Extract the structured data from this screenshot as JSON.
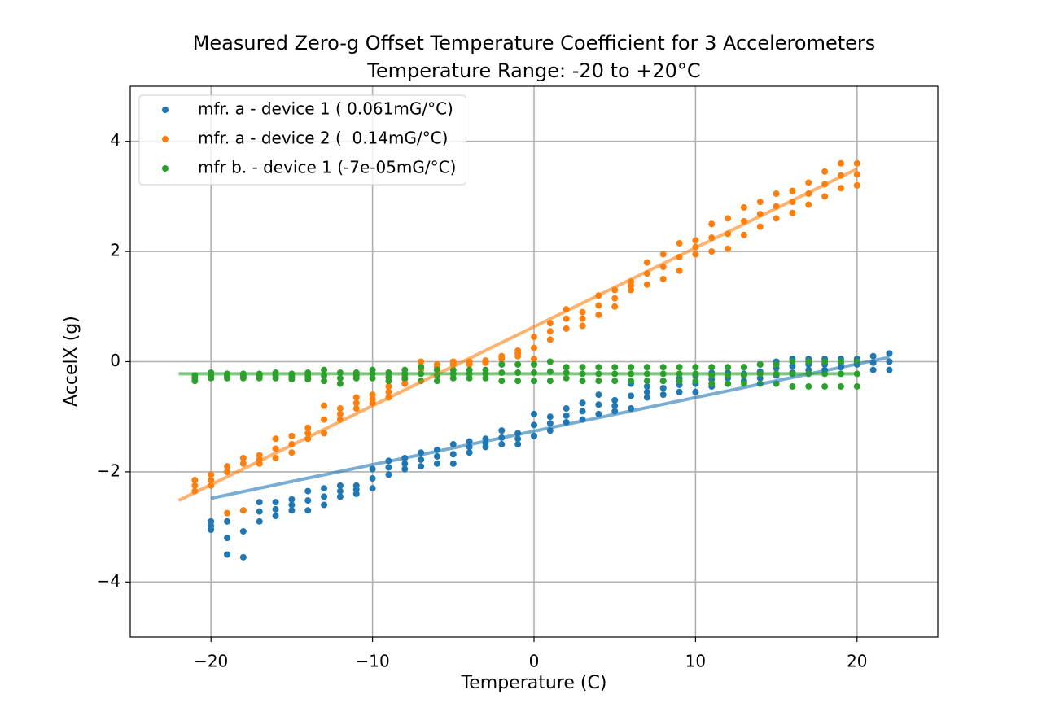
{
  "chart_data": {
    "type": "scatter",
    "title": "Measured Zero-g Offset Temperature Coefficient for 3 Accelerometers",
    "subtitle": "Temperature Range: -20 to +20°C",
    "x_label": "Temperature (C)",
    "y_label": "AccelX (g)",
    "xlim": [
      -25,
      25
    ],
    "ylim": [
      -5,
      5
    ],
    "xticks": [
      {
        "value": -20,
        "label": "−20"
      },
      {
        "value": -10,
        "label": "−10"
      },
      0,
      10,
      20
    ],
    "yticks": [
      {
        "value": -4,
        "label": "−4"
      },
      {
        "value": -2,
        "label": "−2"
      },
      0,
      2,
      4
    ],
    "grid": true,
    "legend": "upper left",
    "series": [
      {
        "name": "mfr. a - device 1 ( 0.061mG/°C)",
        "color": "#1f77b4",
        "x": [
          -20,
          -20,
          -20,
          -19,
          -19,
          -19,
          -18,
          -18,
          -18,
          -17,
          -17,
          -17,
          -16,
          -16,
          -16,
          -15,
          -15,
          -15,
          -14,
          -14,
          -14,
          -13,
          -13,
          -13,
          -12,
          -12,
          -12,
          -11,
          -11,
          -11,
          -10,
          -10,
          -10,
          -9,
          -9,
          -9,
          -8,
          -8,
          -8,
          -7,
          -7,
          -7,
          -6,
          -6,
          -6,
          -5,
          -5,
          -5,
          -4,
          -4,
          -4,
          -3,
          -3,
          -3,
          -2,
          -2,
          -2,
          -1,
          -1,
          -1,
          0,
          0,
          0,
          1,
          1,
          1,
          2,
          2,
          2,
          3,
          3,
          3,
          4,
          4,
          4,
          5,
          5,
          5,
          6,
          6,
          6,
          7,
          7,
          7,
          8,
          8,
          8,
          9,
          9,
          9,
          10,
          10,
          10,
          11,
          11,
          11,
          12,
          12,
          12,
          13,
          13,
          13,
          14,
          14,
          14,
          15,
          15,
          15,
          16,
          16,
          16,
          17,
          17,
          17,
          18,
          18,
          18,
          19,
          19,
          19,
          20,
          20,
          20,
          21,
          21,
          21,
          22,
          22,
          22
        ],
        "values": [
          -3.05,
          -2.98,
          -2.9,
          -3.5,
          -3.2,
          -2.9,
          -3.55,
          -3.08,
          -2.7,
          -2.9,
          -2.72,
          -2.55,
          -2.8,
          -2.68,
          -2.55,
          -2.7,
          -2.6,
          -2.5,
          -2.7,
          -2.52,
          -2.35,
          -2.6,
          -2.45,
          -2.3,
          -2.45,
          -2.35,
          -2.25,
          -2.4,
          -2.32,
          -2.25,
          -2.3,
          -2.12,
          -1.95,
          -2.05,
          -1.92,
          -1.8,
          -1.95,
          -1.85,
          -1.75,
          -1.9,
          -1.78,
          -1.65,
          -1.85,
          -1.72,
          -1.6,
          -1.85,
          -1.68,
          -1.5,
          -1.65,
          -1.55,
          -1.45,
          -1.55,
          -1.48,
          -1.4,
          -1.5,
          -1.38,
          -1.25,
          -1.5,
          -1.4,
          -1.3,
          -1.35,
          -1.15,
          -0.95,
          -1.25,
          -1.12,
          -1.0,
          -1.1,
          -0.98,
          -0.85,
          -1.05,
          -0.9,
          -0.75,
          -0.95,
          -0.78,
          -0.6,
          -0.9,
          -0.8,
          -0.7,
          -0.85,
          -0.62,
          -0.4,
          -0.65,
          -0.55,
          -0.45,
          -0.6,
          -0.48,
          -0.35,
          -0.55,
          -0.42,
          -0.3,
          -0.55,
          -0.4,
          -0.25,
          -0.45,
          -0.32,
          -0.2,
          -0.4,
          -0.3,
          -0.2,
          -0.35,
          -0.22,
          -0.1,
          -0.3,
          -0.18,
          -0.05,
          -0.25,
          -0.12,
          0,
          -0.2,
          -0.08,
          0.05,
          -0.15,
          -0.05,
          0.05,
          -0.15,
          -0.05,
          0.05,
          -0.1,
          -0.02,
          0.05,
          -0.05,
          0,
          0.05,
          -0.15,
          -0.02,
          0.1,
          -0.15,
          0,
          0.15
        ],
        "fit_x": [
          -20,
          22
        ],
        "fit_values": [
          -2.48,
          0.08
        ]
      },
      {
        "name": "mfr. a - device 2 (  0.14mG/°C)",
        "color": "#ff7f0e",
        "x": [
          -21,
          -21,
          -21,
          -20,
          -20,
          -20,
          -19,
          -19,
          -19,
          -18,
          -18,
          -18,
          -17,
          -17,
          -17,
          -16,
          -16,
          -16,
          -15,
          -15,
          -15,
          -14,
          -14,
          -14,
          -13,
          -13,
          -13,
          -12,
          -12,
          -12,
          -11,
          -11,
          -11,
          -10,
          -10,
          -10,
          -9,
          -9,
          -9,
          -8,
          -8,
          -8,
          -7,
          -7,
          -7,
          -6,
          -6,
          -6,
          -5,
          -5,
          -5,
          -4,
          -4,
          -4,
          -3,
          -3,
          -3,
          -2,
          -2,
          -2,
          -1,
          -1,
          -1,
          0,
          0,
          0,
          1,
          1,
          1,
          2,
          2,
          2,
          3,
          3,
          3,
          4,
          4,
          4,
          5,
          5,
          5,
          6,
          6,
          6,
          7,
          7,
          7,
          8,
          8,
          8,
          9,
          9,
          9,
          10,
          10,
          10,
          11,
          11,
          11,
          12,
          12,
          12,
          13,
          13,
          13,
          14,
          14,
          14,
          15,
          15,
          15,
          16,
          16,
          16,
          17,
          17,
          17,
          18,
          18,
          18,
          19,
          19,
          19,
          20,
          20,
          20
        ],
        "values": [
          -2.35,
          -2.25,
          -2.15,
          -2.25,
          -2.15,
          -2.05,
          -2.75,
          -2.0,
          -1.9,
          -2.7,
          -1.85,
          -1.75,
          -1.85,
          -1.78,
          -1.7,
          -1.75,
          -1.58,
          -1.4,
          -1.65,
          -1.5,
          -1.35,
          -1.4,
          -1.3,
          -1.2,
          -1.3,
          -1.05,
          -0.8,
          -1.05,
          -0.95,
          -0.85,
          -0.85,
          -0.75,
          -0.65,
          -0.75,
          -0.68,
          -0.6,
          -0.65,
          -0.55,
          -0.45,
          -0.4,
          -0.32,
          -0.25,
          -0.15,
          -0.08,
          0,
          -0.15,
          -0.1,
          -0.05,
          -0.05,
          -0.02,
          0,
          -0.05,
          -0.02,
          0,
          -0.02,
          0,
          0.02,
          0.05,
          0.08,
          0.1,
          0.1,
          0.15,
          0.2,
          0.05,
          0.25,
          0.45,
          0.4,
          0.55,
          0.7,
          0.6,
          0.78,
          0.95,
          0.65,
          0.78,
          0.9,
          0.85,
          1.02,
          1.2,
          1.0,
          1.15,
          1.3,
          1.3,
          1.38,
          1.45,
          1.4,
          1.6,
          1.8,
          1.5,
          1.72,
          1.95,
          1.65,
          1.9,
          2.15,
          1.95,
          2.08,
          2.2,
          2.0,
          2.25,
          2.5,
          2.05,
          2.32,
          2.6,
          2.3,
          2.55,
          2.8,
          2.45,
          2.68,
          2.9,
          2.6,
          2.82,
          3.05,
          2.7,
          2.9,
          3.1,
          2.85,
          3.05,
          3.25,
          3.0,
          3.22,
          3.45,
          3.15,
          3.38,
          3.6,
          3.2,
          3.4,
          3.6
        ],
        "fit_x": [
          -22,
          20
        ],
        "fit_values": [
          -2.52,
          3.5
        ]
      },
      {
        "name": "mfr b. - device 1 (-7e-05mG/°C)",
        "color": "#2ca02c",
        "x": [
          -21,
          -21,
          -21,
          -20,
          -20,
          -20,
          -19,
          -19,
          -19,
          -18,
          -18,
          -18,
          -17,
          -17,
          -17,
          -16,
          -16,
          -16,
          -15,
          -15,
          -15,
          -14,
          -14,
          -14,
          -13,
          -13,
          -13,
          -12,
          -12,
          -12,
          -11,
          -11,
          -11,
          -10,
          -10,
          -10,
          -9,
          -9,
          -9,
          -8,
          -8,
          -8,
          -7,
          -7,
          -7,
          -6,
          -6,
          -6,
          -5,
          -5,
          -5,
          -4,
          -4,
          -4,
          -3,
          -3,
          -3,
          -2,
          -2,
          -2,
          -1,
          -1,
          -1,
          0,
          0,
          0,
          1,
          1,
          1,
          2,
          2,
          2,
          3,
          3,
          3,
          4,
          4,
          4,
          5,
          5,
          5,
          6,
          6,
          6,
          7,
          7,
          7,
          8,
          8,
          8,
          9,
          9,
          9,
          10,
          10,
          10,
          11,
          11,
          11,
          12,
          12,
          12,
          13,
          13,
          13,
          14,
          14,
          14,
          15,
          15,
          15,
          16,
          16,
          16,
          17,
          17,
          17,
          18,
          18,
          18,
          19,
          19,
          19,
          20,
          20,
          20
        ],
        "values": [
          -0.35,
          -0.3,
          -0.25,
          -0.3,
          -0.25,
          -0.2,
          -0.3,
          -0.26,
          -0.22,
          -0.3,
          -0.26,
          -0.22,
          -0.3,
          -0.26,
          -0.22,
          -0.3,
          -0.25,
          -0.2,
          -0.32,
          -0.27,
          -0.22,
          -0.32,
          -0.26,
          -0.2,
          -0.35,
          -0.25,
          -0.15,
          -0.4,
          -0.3,
          -0.2,
          -0.3,
          -0.25,
          -0.2,
          -0.3,
          -0.22,
          -0.15,
          -0.35,
          -0.28,
          -0.2,
          -0.3,
          -0.22,
          -0.15,
          -0.35,
          -0.22,
          -0.1,
          -0.35,
          -0.25,
          -0.15,
          -0.3,
          -0.22,
          -0.15,
          -0.3,
          -0.22,
          -0.15,
          -0.3,
          -0.22,
          -0.15,
          -0.35,
          -0.2,
          -0.05,
          -0.35,
          -0.2,
          -0.05,
          -0.35,
          -0.2,
          -0.05,
          -0.35,
          -0.18,
          0,
          -0.3,
          -0.2,
          -0.1,
          -0.35,
          -0.22,
          -0.1,
          -0.35,
          -0.22,
          -0.1,
          -0.35,
          -0.22,
          -0.1,
          -0.35,
          -0.22,
          -0.1,
          -0.35,
          -0.22,
          -0.1,
          -0.35,
          -0.22,
          -0.1,
          -0.35,
          -0.22,
          -0.1,
          -0.35,
          -0.22,
          -0.1,
          -0.4,
          -0.25,
          -0.1,
          -0.4,
          -0.25,
          -0.1,
          -0.4,
          -0.25,
          -0.1,
          -0.4,
          -0.22,
          -0.05,
          -0.4,
          -0.22,
          -0.05,
          -0.45,
          -0.22,
          0,
          -0.45,
          -0.22,
          0,
          -0.45,
          -0.22,
          0,
          -0.45,
          -0.22,
          0,
          -0.45,
          -0.22,
          0
        ],
        "fit_x": [
          -22,
          20
        ],
        "fit_values": [
          -0.22,
          -0.22
        ]
      }
    ]
  }
}
